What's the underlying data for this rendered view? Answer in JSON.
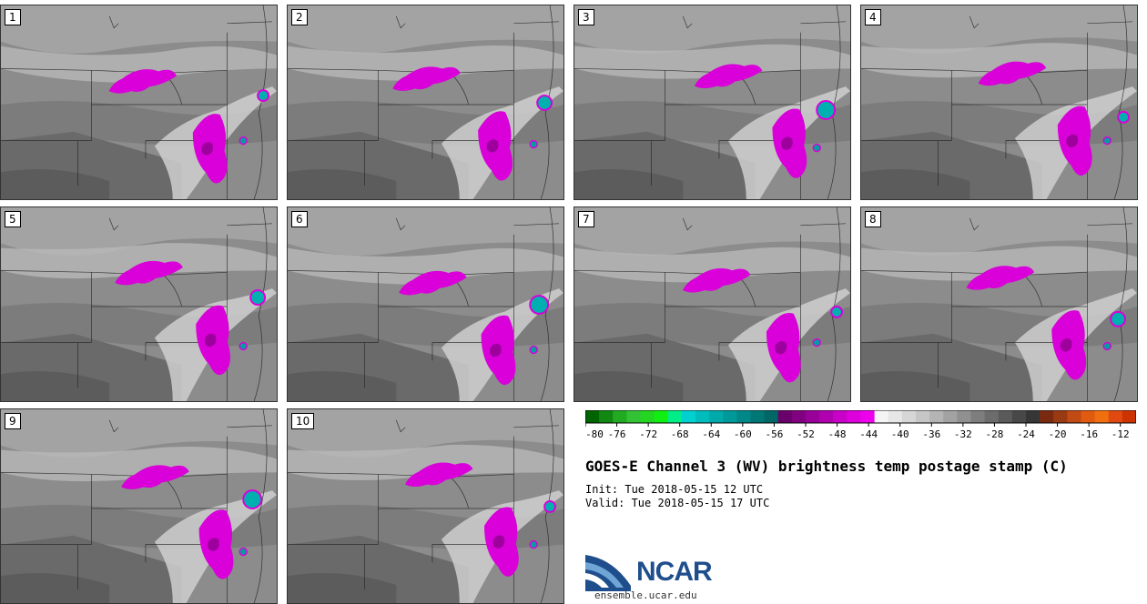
{
  "chart_data": {
    "type": "heatmap",
    "title": "GOES-E Channel 3 (WV) brightness temp postage stamp (C)",
    "init_label": "Init: Tue 2018-05-15 12 UTC",
    "valid_label": "Valid: Tue 2018-05-15 17 UTC",
    "members": [
      "1",
      "2",
      "3",
      "4",
      "5",
      "6",
      "7",
      "8",
      "9",
      "10"
    ],
    "colorbar": {
      "min": -80,
      "max": -10,
      "ticks": [
        "-80",
        "-76",
        "-72",
        "-68",
        "-64",
        "-60",
        "-56",
        "-52",
        "-48",
        "-44",
        "-40",
        "-36",
        "-32",
        "-28",
        "-24",
        "-20",
        "-16",
        "-12"
      ],
      "colors": [
        "#006400",
        "#118811",
        "#22aa22",
        "#33c233",
        "#22d622",
        "#11ee11",
        "#00ee88",
        "#00d0d0",
        "#00bdbd",
        "#00aaaa",
        "#009999",
        "#008888",
        "#007777",
        "#006666",
        "#6a006a",
        "#800080",
        "#990099",
        "#b000b0",
        "#c800c8",
        "#dd00dd",
        "#ee00ee",
        "#f4f4f4",
        "#e6e6e6",
        "#d6d6d6",
        "#c6c6c6",
        "#b4b4b4",
        "#a2a2a2",
        "#909090",
        "#7e7e7e",
        "#6c6c6c",
        "#5a5a5a",
        "#484848",
        "#363636",
        "#7a2a10",
        "#9a3a12",
        "#c24a14",
        "#e05a10",
        "#f07010",
        "#e04a10",
        "#cc3300"
      ]
    }
  },
  "logo": {
    "name": "NCAR",
    "url": "ensemble.ucar.edu"
  }
}
